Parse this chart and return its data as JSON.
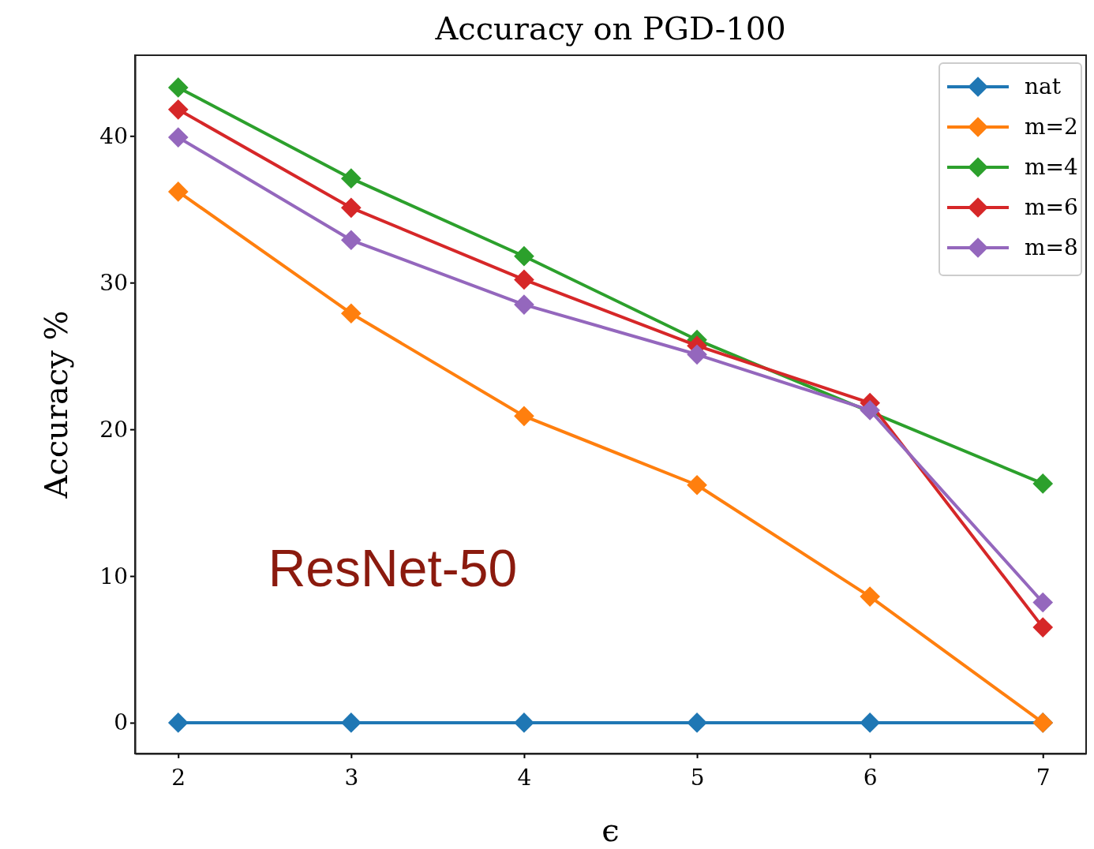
{
  "chart_data": {
    "type": "line",
    "title": "Accuracy on PGD-100",
    "xlabel": "ϵ",
    "ylabel": "Accuracy %",
    "x": [
      2,
      3,
      4,
      5,
      6,
      7
    ],
    "series": [
      {
        "name": "nat",
        "color": "#1f77b4",
        "values": [
          0,
          0,
          0,
          0,
          0,
          0
        ]
      },
      {
        "name": "m=2",
        "color": "#ff7f0e",
        "values": [
          36.2,
          27.9,
          20.9,
          16.2,
          8.6,
          0
        ]
      },
      {
        "name": "m=4",
        "color": "#2ca02c",
        "values": [
          43.3,
          37.1,
          31.8,
          26.1,
          null,
          16.3
        ]
      },
      {
        "name": "m=6",
        "color": "#d62728",
        "values": [
          41.8,
          35.1,
          30.2,
          25.7,
          21.8,
          6.5
        ]
      },
      {
        "name": "m=8",
        "color": "#9467bd",
        "values": [
          39.9,
          32.9,
          28.5,
          25.1,
          21.3,
          8.2
        ]
      }
    ],
    "xlim": [
      1.75,
      7.25
    ],
    "xticks": [
      2,
      3,
      4,
      5,
      6,
      7
    ],
    "ylim": [
      -2.1,
      45.5
    ],
    "yticks": [
      0,
      10,
      20,
      30,
      40
    ],
    "marker": "diamond",
    "legend": "top right",
    "grid": false,
    "annotations": [
      "ResNet-50"
    ]
  }
}
